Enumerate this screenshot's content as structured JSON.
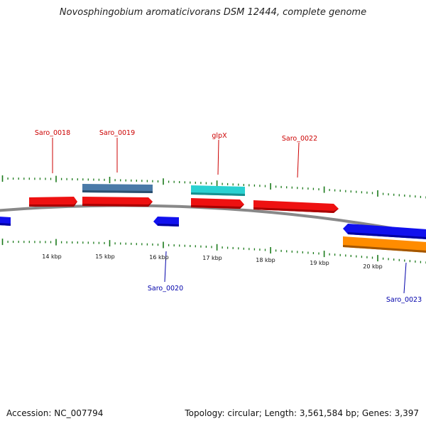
{
  "header": {
    "title": "Novosphingobium aromaticivorans DSM 12444, complete genome"
  },
  "footer": {
    "accession": "Accession: NC_007794",
    "stats": "Topology: circular; Length: 3,561,584 bp; Genes: 3,397"
  },
  "colors": {
    "forward_gene": "#ee1111",
    "reverse_gene": "#1111ee",
    "rna": "#2ad1d1",
    "pseudo": "#4a7aa8",
    "orange": "#ff8c00",
    "backbone": "#888888",
    "ticks": "#1a7a1a",
    "label_forward": "#cc0000",
    "label_reverse": "#0000aa"
  },
  "scale": {
    "labels": [
      "14 kbp",
      "15 kbp",
      "16 kbp",
      "17 kbp",
      "18 kbp",
      "19 kbp",
      "20 kbp"
    ]
  },
  "genes": [
    {
      "name": "Saro_0018",
      "strand": "forward",
      "label": "Saro_0018"
    },
    {
      "name": "Saro_0019",
      "strand": "forward",
      "label": "Saro_0019"
    },
    {
      "name": "glpX",
      "strand": "forward",
      "label": "glpX"
    },
    {
      "name": "Saro_0022",
      "strand": "forward",
      "label": "Saro_0022"
    },
    {
      "name": "Saro_0020",
      "strand": "reverse",
      "label": "Saro_0020"
    },
    {
      "name": "Saro_0023",
      "strand": "reverse",
      "label": "Saro_0023"
    }
  ]
}
